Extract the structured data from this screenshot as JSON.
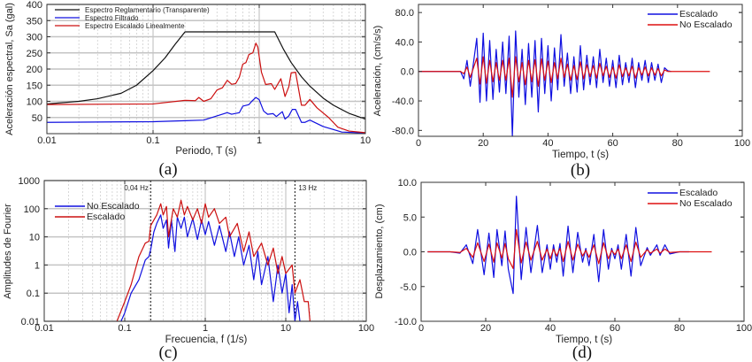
{
  "chart_data": [
    {
      "id": "a",
      "type": "line",
      "caption": "(a)",
      "xlabel": "Periodo, T (s)",
      "ylabel": "Aceleración espectral, Sa (gal)",
      "xscale": "log",
      "yscale": "linear",
      "xlim": [
        0.01,
        10
      ],
      "ylim": [
        0,
        400
      ],
      "xticks": [
        0.01,
        0.1,
        1,
        10
      ],
      "xticklabels": [
        "0.01",
        "0.1",
        "1",
        "10"
      ],
      "yticks": [
        50,
        100,
        150,
        200,
        250,
        300,
        350,
        400
      ],
      "yticklabels": [
        "50",
        "100",
        "150",
        "200",
        "250",
        "300",
        "350",
        "400"
      ],
      "grid": true,
      "legend": "top-left",
      "series": [
        {
          "name": "Espectro Reglamentario    (Transparente)",
          "color": "#111111",
          "x": [
            0.01,
            0.02,
            0.03,
            0.05,
            0.07,
            0.1,
            0.13,
            0.16,
            0.2,
            1.4,
            1.7,
            2,
            2.5,
            3,
            4,
            5,
            7,
            10
          ],
          "y": [
            92,
            100,
            108,
            125,
            150,
            195,
            235,
            275,
            315,
            315,
            260,
            220,
            176,
            147,
            110,
            88,
            63,
            45
          ]
        },
        {
          "name": "Espectro Filtrado",
          "color": "#1010e0",
          "x": [
            0.01,
            0.1,
            0.2,
            0.3,
            0.4,
            0.5,
            0.55,
            0.65,
            0.7,
            0.8,
            0.85,
            0.93,
            1,
            1.1,
            1.2,
            1.35,
            1.45,
            1.65,
            1.75,
            1.9,
            2.05,
            2.2,
            2.5,
            2.7,
            3,
            4,
            6,
            10
          ],
          "y": [
            35,
            37,
            40,
            42,
            55,
            65,
            60,
            65,
            85,
            90,
            100,
            112,
            105,
            70,
            60,
            62,
            53,
            68,
            45,
            55,
            75,
            75,
            35,
            35,
            42,
            22,
            5,
            2
          ]
        },
        {
          "name": "Espectro Escalado Linealmente",
          "color": "#cc1010",
          "x": [
            0.01,
            0.1,
            0.2,
            0.25,
            0.27,
            0.3,
            0.35,
            0.4,
            0.45,
            0.5,
            0.55,
            0.6,
            0.65,
            0.7,
            0.75,
            0.8,
            0.87,
            0.93,
            0.97,
            1.05,
            1.15,
            1.3,
            1.4,
            1.6,
            1.75,
            1.9,
            2,
            2.2,
            2.5,
            2.7,
            3,
            3.5,
            4.5,
            5.5,
            7,
            10
          ],
          "y": [
            90,
            92,
            103,
            102,
            112,
            100,
            108,
            135,
            142,
            165,
            153,
            155,
            175,
            215,
            220,
            245,
            250,
            280,
            268,
            190,
            152,
            155,
            137,
            170,
            115,
            145,
            188,
            190,
            88,
            88,
            106,
            80,
            50,
            20,
            8,
            3
          ]
        }
      ]
    },
    {
      "id": "b",
      "type": "line",
      "caption": "(b)",
      "xlabel": "Tiempo, t (s)",
      "ylabel": "Aceleración, (cm/s/s)",
      "xscale": "linear",
      "yscale": "linear",
      "xlim": [
        0,
        100
      ],
      "ylim": [
        -88,
        91
      ],
      "xticks": [
        0,
        20,
        40,
        60,
        80,
        100
      ],
      "xticklabels": [
        "0",
        "20",
        "40",
        "60",
        "80",
        "100"
      ],
      "yticks": [
        80,
        40,
        0,
        -40,
        -80
      ],
      "yticklabels": [
        "80.0",
        "40.0",
        "0.0",
        "-40.0",
        "-80.0"
      ],
      "grid": false,
      "legend": "top-right",
      "series": [
        {
          "name": "Escalado",
          "color": "#1010e0",
          "x": [
            0,
            12,
            13,
            14,
            15,
            16,
            17,
            18,
            19,
            20,
            21,
            22,
            23,
            24,
            25,
            26,
            27,
            28,
            29,
            30,
            31,
            32,
            33,
            34,
            35,
            36,
            37,
            38,
            39,
            40,
            41,
            42,
            43,
            44,
            45,
            46,
            47,
            48,
            49,
            50,
            51,
            52,
            53,
            54,
            55,
            56,
            57,
            58,
            59,
            60,
            61,
            62,
            63,
            64,
            65,
            66,
            67,
            68,
            69,
            70,
            71,
            72,
            73,
            74,
            75,
            76,
            77,
            78
          ],
          "y": [
            0,
            0,
            0,
            -10,
            15,
            -20,
            12,
            45,
            -42,
            52,
            -40,
            42,
            -38,
            30,
            -28,
            40,
            -30,
            48,
            -90,
            55,
            -35,
            30,
            -45,
            38,
            -35,
            42,
            -55,
            45,
            -30,
            35,
            -40,
            32,
            -25,
            50,
            -20,
            25,
            -30,
            20,
            -28,
            35,
            -25,
            22,
            -18,
            20,
            -22,
            30,
            -15,
            18,
            -20,
            15,
            -22,
            22,
            -18,
            12,
            -15,
            18,
            -22,
            12,
            -12,
            15,
            -15,
            12,
            -12,
            10,
            -15,
            5,
            1,
            0
          ]
        },
        {
          "name": "No Escalado",
          "color": "#dd1010",
          "x": [
            0,
            12,
            13,
            14,
            15,
            16,
            17,
            18,
            19,
            20,
            21,
            22,
            23,
            24,
            25,
            26,
            27,
            28,
            29,
            30,
            31,
            32,
            33,
            34,
            35,
            36,
            37,
            38,
            39,
            40,
            41,
            42,
            43,
            44,
            45,
            46,
            47,
            48,
            49,
            50,
            51,
            52,
            53,
            54,
            55,
            56,
            57,
            58,
            59,
            60,
            61,
            62,
            63,
            64,
            65,
            66,
            67,
            68,
            69,
            70,
            71,
            72,
            73,
            74,
            75,
            76,
            77,
            78,
            90
          ],
          "y": [
            0,
            0,
            0,
            -3,
            6,
            -8,
            5,
            18,
            -17,
            20,
            -16,
            15,
            -14,
            12,
            -12,
            15,
            -12,
            18,
            -35,
            20,
            -14,
            12,
            -18,
            15,
            -14,
            16,
            -20,
            17,
            -12,
            14,
            -15,
            12,
            -10,
            18,
            -8,
            10,
            -12,
            8,
            -11,
            13,
            -10,
            9,
            -7,
            8,
            -9,
            11,
            -6,
            7,
            -8,
            6,
            -9,
            9,
            -7,
            5,
            -6,
            7,
            -9,
            5,
            -5,
            6,
            -6,
            5,
            -5,
            4,
            -6,
            2,
            0,
            0,
            0
          ]
        }
      ]
    },
    {
      "id": "c",
      "type": "line",
      "caption": "(c)",
      "xlabel": "Frecuencia, f (1/s)",
      "ylabel": "Amplitudes de Fourier",
      "xscale": "log",
      "yscale": "log",
      "xlim": [
        0.01,
        100
      ],
      "ylim": [
        0.01,
        1000
      ],
      "xticks": [
        0.01,
        0.1,
        1,
        10,
        100
      ],
      "xticklabels": [
        "0.01",
        "0.1",
        "1",
        "10",
        "100"
      ],
      "yticks": [
        0.01,
        0.1,
        1,
        10,
        100,
        1000
      ],
      "yticklabels": [
        "0.01",
        "0.1",
        "1",
        "10",
        "100",
        "1000"
      ],
      "grid": true,
      "legend": "top-left",
      "annotations": [
        {
          "x": 0.21,
          "label": "0,04 Hz"
        },
        {
          "x": 13,
          "label": "13 Hz"
        }
      ],
      "series": [
        {
          "name": "No Escalado",
          "color": "#1010e0",
          "x": [
            0.09,
            0.1,
            0.12,
            0.15,
            0.18,
            0.2,
            0.21,
            0.23,
            0.25,
            0.28,
            0.3,
            0.33,
            0.35,
            0.38,
            0.42,
            0.45,
            0.5,
            0.55,
            0.6,
            0.7,
            0.8,
            0.9,
            1,
            1.1,
            1.3,
            1.5,
            1.8,
            2,
            2.3,
            2.6,
            3,
            3.5,
            4,
            4.5,
            5,
            6,
            7,
            8,
            9,
            10,
            11,
            12,
            13,
            14,
            15
          ],
          "y": [
            0.01,
            0.02,
            0.1,
            0.3,
            1.5,
            2,
            3.5,
            15,
            30,
            60,
            20,
            40,
            4,
            40,
            3,
            50,
            20,
            50,
            10,
            45,
            8,
            40,
            12,
            35,
            5,
            25,
            3,
            15,
            2,
            10,
            1,
            5,
            0.3,
            3,
            0.2,
            2,
            0.05,
            1,
            0.1,
            0.5,
            0.02,
            0.2,
            0.01,
            0.05,
            0.01
          ]
        },
        {
          "name": "Escalado",
          "color": "#cc1010",
          "x": [
            0.08,
            0.1,
            0.12,
            0.15,
            0.18,
            0.2,
            0.21,
            0.25,
            0.28,
            0.3,
            0.33,
            0.35,
            0.4,
            0.45,
            0.5,
            0.55,
            0.6,
            0.7,
            0.8,
            0.9,
            1,
            1.1,
            1.3,
            1.5,
            1.8,
            2,
            2.5,
            3,
            3.5,
            4,
            5,
            6,
            7,
            8,
            9,
            10,
            12,
            13,
            15,
            17,
            19,
            20
          ],
          "y": [
            0.01,
            0.05,
            0.2,
            2,
            6,
            7,
            25,
            60,
            150,
            60,
            120,
            10,
            100,
            50,
            200,
            60,
            120,
            40,
            100,
            30,
            150,
            50,
            100,
            30,
            50,
            10,
            30,
            3,
            15,
            2,
            6,
            1,
            4,
            0.5,
            2,
            0.5,
            1,
            0.1,
            0.3,
            0.05,
            0.05,
            0.01
          ]
        }
      ]
    },
    {
      "id": "d",
      "type": "line",
      "caption": "(d)",
      "xlabel": "Tiempo, t (s)",
      "ylabel": "Desplazamiento, (cm)",
      "xscale": "linear",
      "yscale": "linear",
      "xlim": [
        0,
        100
      ],
      "ylim": [
        -10,
        10
      ],
      "xticks": [
        0,
        20,
        40,
        60,
        80,
        100
      ],
      "xticklabels": [
        "0",
        "20",
        "40",
        "60",
        "80",
        "100"
      ],
      "yticks": [
        10,
        5,
        0,
        -5,
        -10
      ],
      "yticklabels": [
        "10.0",
        "5.0",
        "0.0",
        "-5.0",
        "-10.0"
      ],
      "grid": false,
      "legend": "top-right",
      "series": [
        {
          "name": "Escalado",
          "color": "#1010e0",
          "x": [
            2,
            9,
            12,
            14,
            16,
            17.5,
            19.5,
            21,
            22.5,
            23.5,
            25,
            26,
            27,
            28.5,
            29.5,
            31,
            32.5,
            34,
            36,
            37.5,
            39,
            40,
            41,
            42,
            43,
            44,
            45.5,
            47,
            48.5,
            50,
            51,
            52,
            53.5,
            55,
            56.5,
            58,
            59,
            60,
            61,
            62,
            63.5,
            65,
            66.5,
            68,
            70,
            71,
            73,
            74,
            75.5,
            77,
            80,
            83
          ],
          "y": [
            0,
            0,
            -0.2,
            1,
            -1.7,
            3.2,
            -3.3,
            2.7,
            -3.7,
            3.2,
            -2,
            3,
            -2.5,
            -6,
            8,
            -4,
            3.5,
            -3,
            3.8,
            -3,
            1,
            -2.5,
            1,
            -1.5,
            1.2,
            -3.5,
            3.7,
            -3,
            2.8,
            -1.5,
            0.5,
            -2,
            2.5,
            -4.3,
            3.2,
            -2.5,
            0.5,
            -1,
            1,
            -2.5,
            2.5,
            -3.5,
            3.5,
            -2,
            0.6,
            -0.5,
            1,
            -0.5,
            1,
            -0.3,
            0,
            0
          ]
        },
        {
          "name": "No Escalado",
          "color": "#dd1010",
          "x": [
            2,
            9,
            12,
            14,
            16,
            17.5,
            19.5,
            21,
            22.5,
            23.5,
            25,
            26,
            27,
            28.5,
            29.5,
            31,
            32.5,
            34,
            36,
            37.5,
            39,
            40,
            41,
            42,
            43,
            44,
            45.5,
            47,
            48.5,
            50,
            51,
            52,
            53.5,
            55,
            56.5,
            58,
            59,
            60,
            61,
            62,
            63.5,
            65,
            66.5,
            68,
            70,
            71,
            73,
            74,
            75.5,
            77,
            80,
            90
          ],
          "y": [
            0,
            0,
            -0.1,
            0.5,
            -0.8,
            1.3,
            -1.4,
            1.1,
            -1.5,
            1.3,
            -0.9,
            1.2,
            -1,
            -2.4,
            3.2,
            -1.6,
            1.4,
            -1.2,
            1.5,
            -1.2,
            0.4,
            -1,
            0.4,
            -0.6,
            0.5,
            -1.4,
            1.5,
            -1.2,
            1.1,
            -0.6,
            0.2,
            -0.8,
            1,
            -1.7,
            1.3,
            -1,
            0.2,
            -0.4,
            0.4,
            -1,
            1,
            -1.4,
            1.4,
            -0.8,
            0.3,
            -0.2,
            0.4,
            -0.2,
            0.4,
            -0.1,
            0,
            0
          ]
        }
      ]
    }
  ]
}
